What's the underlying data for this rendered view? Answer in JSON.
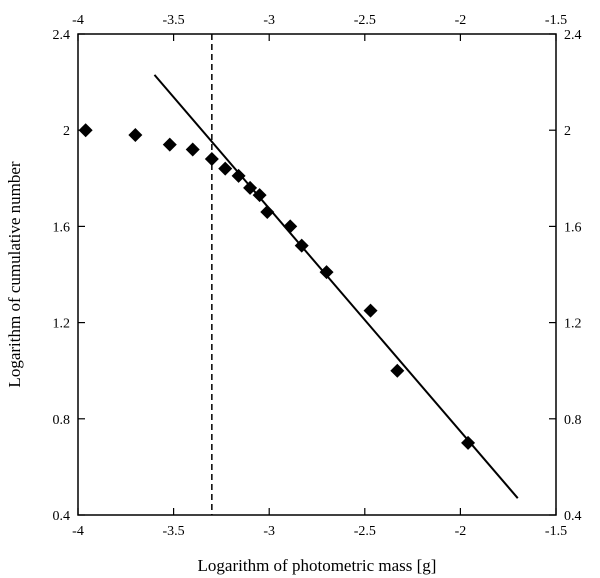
{
  "chart_data": {
    "type": "scatter",
    "title": "",
    "xlabel": "Logarithm of photometric mass [g]",
    "ylabel": "Logarithm of cumulative number",
    "xlim": [
      -4,
      -1.5
    ],
    "ylim": [
      0.4,
      2.4
    ],
    "x_ticks": [
      -4,
      -3.5,
      -3,
      -2.5,
      -2,
      -1.5
    ],
    "x_tick_labels": [
      "-4",
      "-3.5",
      "-3",
      "-2.5",
      "-2",
      "-1.5"
    ],
    "y_ticks": [
      0.4,
      0.8,
      1.2,
      1.6,
      2,
      2.4
    ],
    "y_tick_labels": [
      "0.4",
      "0.8",
      "1.2",
      "1.6",
      "2",
      "2.4"
    ],
    "top_axis_mirrored": true,
    "right_axis_mirrored": true,
    "grid": false,
    "marker": "diamond",
    "points": [
      {
        "x": -3.96,
        "y": 2.0
      },
      {
        "x": -3.7,
        "y": 1.98
      },
      {
        "x": -3.52,
        "y": 1.94
      },
      {
        "x": -3.4,
        "y": 1.92
      },
      {
        "x": -3.3,
        "y": 1.88
      },
      {
        "x": -3.23,
        "y": 1.84
      },
      {
        "x": -3.16,
        "y": 1.81
      },
      {
        "x": -3.1,
        "y": 1.76
      },
      {
        "x": -3.05,
        "y": 1.73
      },
      {
        "x": -3.01,
        "y": 1.66
      },
      {
        "x": -2.89,
        "y": 1.6
      },
      {
        "x": -2.83,
        "y": 1.52
      },
      {
        "x": -2.7,
        "y": 1.41
      },
      {
        "x": -2.47,
        "y": 1.25
      },
      {
        "x": -2.33,
        "y": 1.0
      },
      {
        "x": -1.96,
        "y": 0.7
      }
    ],
    "fit_line": {
      "x1": -3.6,
      "y1": 2.23,
      "x2": -1.7,
      "y2": 0.47
    },
    "vertical_line": {
      "x": -3.3,
      "style": "dashed"
    }
  }
}
